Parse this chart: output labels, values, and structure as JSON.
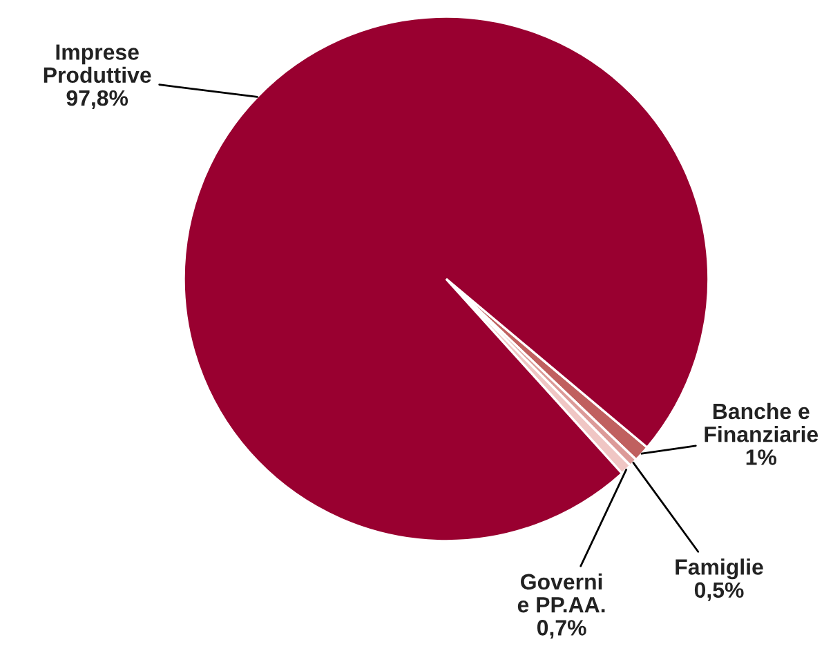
{
  "chart_data": {
    "type": "pie",
    "categories": [
      "Banche e\nFinanziarie",
      "Famiglie",
      "Governi\ne PP.AA.",
      "Imprese\nProduttive"
    ],
    "values": [
      1,
      0.5,
      0.7,
      97.8
    ],
    "value_labels": [
      "1%",
      "0,5%",
      "0,7%",
      "97,8%"
    ],
    "colors": [
      "#c0605f",
      "#dc9a98",
      "#f0c6c4",
      "#990030"
    ],
    "legend": false
  }
}
